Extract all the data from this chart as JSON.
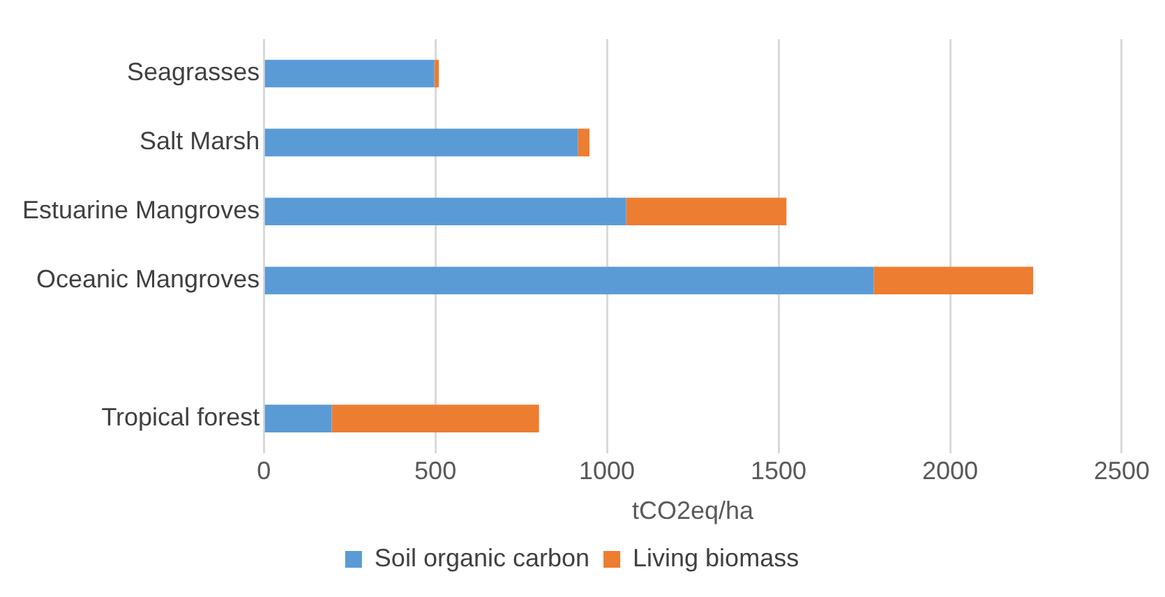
{
  "chart_data": {
    "type": "bar",
    "orientation": "horizontal",
    "stacked": true,
    "categories": [
      "Seagrasses",
      "Salt Marsh",
      "Estuarine Mangroves",
      "Oceanic Mangroves",
      null,
      "Tropical forest"
    ],
    "series": [
      {
        "name": "Soil organic carbon",
        "color": "#5b9bd5",
        "values": [
          497,
          915,
          1056,
          1777,
          null,
          198
        ]
      },
      {
        "name": "Living biomass",
        "color": "#ed7d31",
        "values": [
          13,
          34,
          467,
          465,
          null,
          604
        ]
      }
    ],
    "xlabel": "tCO2eq/ha",
    "xlim": [
      0,
      2500
    ],
    "xticks": [
      0,
      500,
      1000,
      1500,
      2000,
      2500
    ],
    "grid": "x",
    "legend": "bottom"
  }
}
